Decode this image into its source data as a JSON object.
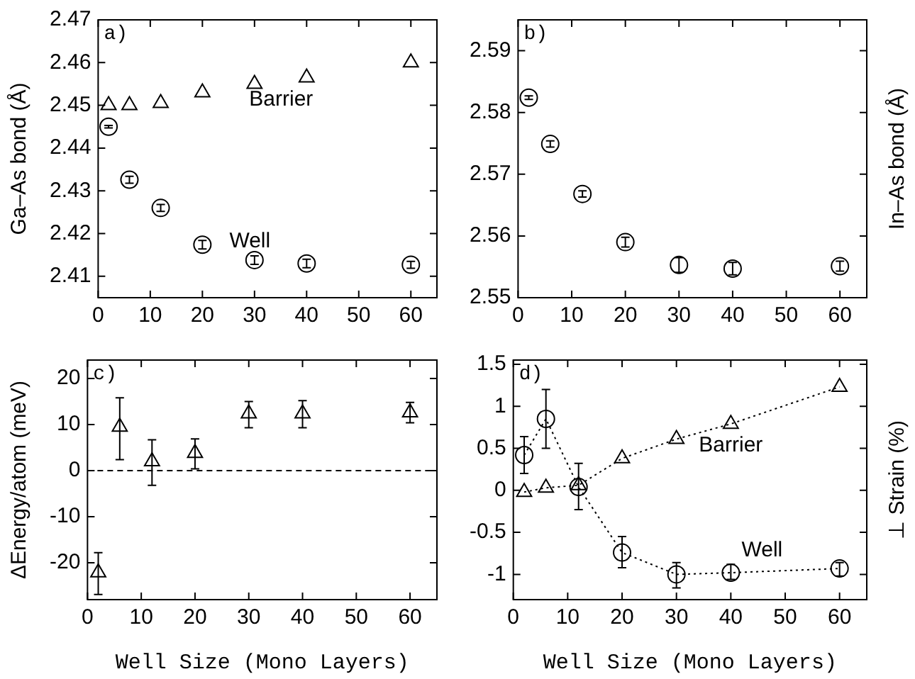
{
  "chart_data": [
    {
      "type": "scatter",
      "ylabel": "Ga–As bond (Å)",
      "annotations": [
        "a)"
      ],
      "x": [
        2,
        6,
        12,
        20,
        30,
        40,
        60
      ],
      "xlim": [
        0,
        65
      ],
      "xticks": [
        0,
        10,
        20,
        30,
        40,
        50,
        60
      ],
      "ylim": [
        2.405,
        2.47
      ],
      "yticks": [
        2.41,
        2.42,
        2.43,
        2.44,
        2.45,
        2.46,
        2.47
      ],
      "grid": false,
      "legend": false,
      "series": [
        {
          "name": "Barrier",
          "color": "#000000",
          "marker": "triangle",
          "values": [
            2.45,
            2.45,
            2.4505,
            2.453,
            2.455,
            2.4565,
            2.46
          ]
        },
        {
          "name": "Well",
          "color": "#000000",
          "marker": "circle",
          "values": [
            2.445,
            2.4326,
            2.426,
            2.4174,
            2.4138,
            2.413,
            2.4127
          ],
          "errors": [
            0.0003,
            0.0008,
            0.0008,
            0.001,
            0.001,
            0.001,
            0.0008
          ]
        }
      ]
    },
    {
      "type": "scatter",
      "ylabel": "In–As bond (Å)",
      "annotations": [
        "b)"
      ],
      "x": [
        2,
        6,
        12,
        20,
        30,
        40,
        60
      ],
      "xlim": [
        0,
        65
      ],
      "xticks": [
        0,
        10,
        20,
        30,
        40,
        50,
        60
      ],
      "ylim": [
        2.55,
        2.595
      ],
      "yticks": [
        2.55,
        2.56,
        2.57,
        2.58,
        2.59
      ],
      "grid": false,
      "legend": false,
      "series": [
        {
          "color": "#000000",
          "marker": "circle",
          "values": [
            2.5824,
            2.5749,
            2.5668,
            2.559,
            2.5553,
            2.5547,
            2.5551
          ],
          "errors": [
            0.0003,
            0.0005,
            0.0005,
            0.0008,
            0.0012,
            0.001,
            0.0008
          ]
        }
      ]
    },
    {
      "type": "scatter",
      "ylabel": "ΔEnergy/atom (meV)",
      "xlabel": "Well Size (Mono Layers)",
      "annotations": [
        "c)"
      ],
      "x": [
        2,
        6,
        12,
        20,
        30,
        40,
        60
      ],
      "xlim": [
        0,
        65
      ],
      "xticks": [
        0,
        10,
        20,
        30,
        40,
        50,
        60
      ],
      "ylim": [
        -28,
        24
      ],
      "yticks": [
        -20,
        -10,
        0,
        10,
        20
      ],
      "grid": false,
      "legend": false,
      "ref_lines": [
        {
          "axis": "y",
          "value": 0,
          "color": "#000000",
          "line_style": "dashed"
        }
      ],
      "series": [
        {
          "color": "#000000",
          "marker": "triangle",
          "values": [
            -22.1,
            9.5,
            2,
            3.8,
            12.4,
            12.4,
            12.6
          ],
          "errors": [
            [
              -26.9,
              -17.8
            ],
            [
              2.4,
              15.8
            ],
            [
              -3.2,
              6.7
            ],
            [
              0.4,
              6.9
            ],
            [
              9.3,
              15
            ],
            [
              9.3,
              15.2
            ],
            [
              10.4,
              14.8
            ]
          ]
        }
      ]
    },
    {
      "type": "line",
      "ylabel": "⊥ Strain (%)",
      "xlabel": "Well Size (Mono Layers)",
      "annotations": [
        "d)"
      ],
      "x": [
        2,
        6,
        12,
        20,
        30,
        40,
        60
      ],
      "xlim": [
        0,
        65
      ],
      "xticks": [
        0,
        10,
        20,
        30,
        40,
        50,
        60
      ],
      "ylim": [
        -1.3,
        1.55
      ],
      "yticks": [
        -1,
        -0.5,
        0,
        0.5,
        1,
        1.5
      ],
      "grid": false,
      "legend": false,
      "series": [
        {
          "name": "Barrier",
          "color": "#000000",
          "marker": "triangle",
          "line_style": "dotted",
          "values": [
            -0.02,
            0.03,
            0.06,
            0.38,
            0.61,
            0.79,
            1.23
          ]
        },
        {
          "name": "Well",
          "color": "#000000",
          "marker": "circle",
          "line_style": "dotted",
          "values": [
            0.42,
            0.85,
            0.04,
            -0.74,
            -1.0,
            -0.98,
            -0.93
          ],
          "errors": [
            [
              0.2,
              0.64
            ],
            [
              0.5,
              1.2
            ],
            [
              -0.23,
              0.32
            ],
            [
              -0.92,
              -0.55
            ],
            [
              -1.16,
              -0.86
            ],
            [
              -1.06,
              -0.88
            ],
            [
              -1.02,
              -0.86
            ]
          ]
        }
      ]
    }
  ]
}
